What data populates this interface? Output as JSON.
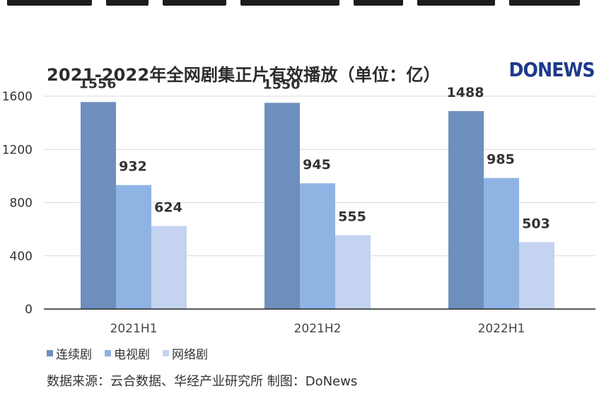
{
  "chart_data": {
    "type": "bar",
    "title": "2021-2022年全网剧集正片有效播放（单位：亿）",
    "categories": [
      "2021H1",
      "2021H2",
      "2022H1"
    ],
    "series": [
      {
        "name": "连续剧",
        "values": [
          1556,
          1550,
          1488
        ],
        "color": "#6e8fbd"
      },
      {
        "name": "电视剧",
        "values": [
          932,
          945,
          985
        ],
        "color": "#8fb3e3"
      },
      {
        "name": "网络剧",
        "values": [
          624,
          555,
          503
        ],
        "color": "#c3d3f0"
      }
    ],
    "yticks": [
      0,
      400,
      800,
      1200,
      1600
    ],
    "ylim": [
      0,
      1600
    ],
    "xlabel": "",
    "ylabel": "",
    "grid": true,
    "legend": "bottom-left"
  },
  "brand": {
    "logo_text": "DONEWS",
    "logo_color": "#1e3a8c"
  },
  "source": "数据来源：云合数据、华经产业研究所  制图：DoNews"
}
